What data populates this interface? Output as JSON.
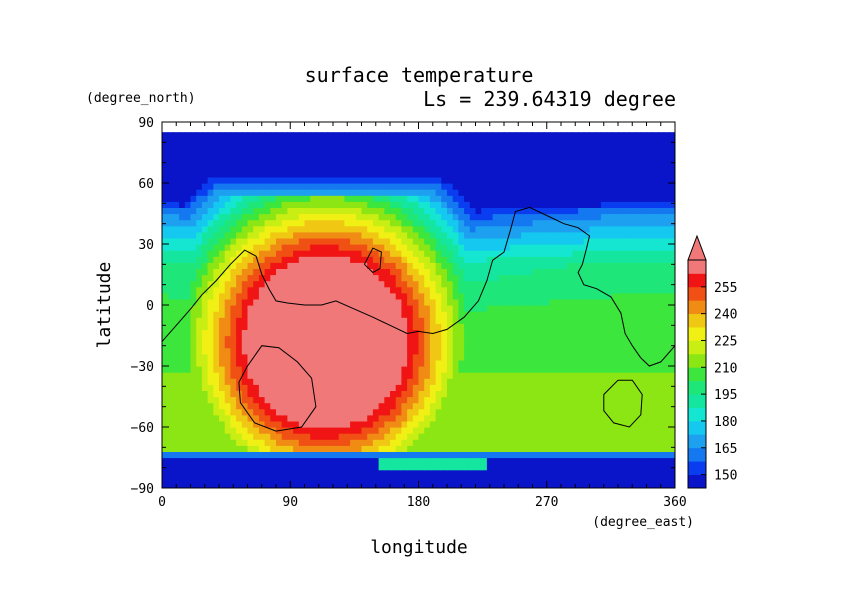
{
  "chart_data": {
    "type": "heatmap",
    "title": "surface temperature",
    "subtitle": "Ls = 239.64319 degree",
    "xlabel": "longitude",
    "ylabel": "latitude",
    "x_units": "(degree_east)",
    "y_units": "(degree_north)",
    "xlim": [
      0,
      360
    ],
    "ylim": [
      -90,
      90
    ],
    "x_ticks": [
      0,
      90,
      180,
      270,
      360
    ],
    "x_tick_labels": [
      "0",
      "90",
      "180",
      "270",
      "360"
    ],
    "y_ticks": [
      90,
      60,
      30,
      0,
      -30,
      -60,
      -90
    ],
    "y_tick_labels": [
      "90",
      "60",
      "30",
      "0",
      "−30",
      "−60",
      "−90"
    ],
    "colorbar": {
      "levels": [
        142.5,
        150,
        157.5,
        165,
        172.5,
        180,
        187.5,
        195,
        202.5,
        210,
        217.5,
        225,
        232.5,
        240,
        247.5,
        255,
        262.5
      ],
      "tick_values": [
        150,
        165,
        180,
        195,
        210,
        225,
        240,
        255
      ],
      "tick_labels": [
        "150",
        "165",
        "180",
        "195",
        "210",
        "225",
        "240",
        "255"
      ],
      "colors": [
        "#0a14c8",
        "#0a3cf0",
        "#1478f0",
        "#1ea0f0",
        "#14c8f0",
        "#14e6d2",
        "#14e6a0",
        "#1ee678",
        "#3ce63c",
        "#8ce614",
        "#c8ee14",
        "#f0f014",
        "#f0c814",
        "#f08c14",
        "#f05014",
        "#f01414",
        "#f07878"
      ],
      "extend": "max"
    },
    "data_extent_lat": [
      -90,
      85
    ],
    "grid": false
  }
}
